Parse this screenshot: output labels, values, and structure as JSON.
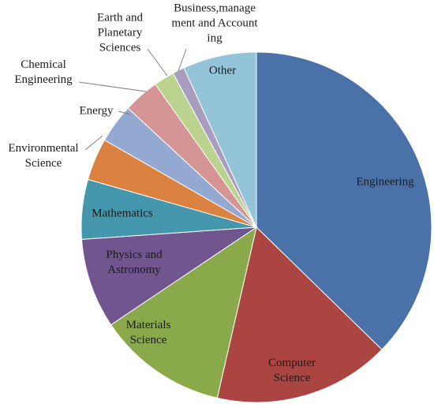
{
  "chart_data": {
    "type": "pie",
    "categories": [
      "Engineering",
      "Computer Science",
      "Materials Science",
      "Physics and Astronomy",
      "Mathematics",
      "Environmental Science",
      "Energy",
      "Chemical Engineering",
      "Earth and Planetary Sciences",
      "Business,management and Accounting",
      "Other"
    ],
    "values": [
      37.3,
      16.3,
      12,
      8.3,
      5.5,
      3.9,
      3.6,
      3.3,
      1.9,
      1.1,
      6.8
    ],
    "colors": [
      "#4a72a8",
      "#aa4542",
      "#8aa94b",
      "#70558f",
      "#4497ac",
      "#dc8240",
      "#93a9d2",
      "#d59594",
      "#bcd38f",
      "#a99cc1",
      "#93c4d7"
    ]
  }
}
